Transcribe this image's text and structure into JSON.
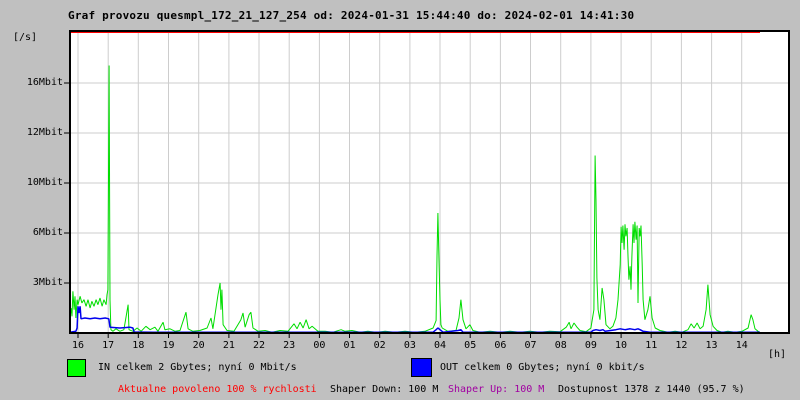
{
  "title": "Graf provozu quesmpl_172_21_127_254 od: 2024-01-31 15:44:40 do: 2024-02-01 14:41:30",
  "colors": {
    "background": "#c0c0c0",
    "plot_background": "#ffffff",
    "grid": "#cdcdcd",
    "border": "#000000",
    "in_line": "#00dd00",
    "in_legend": "#00ff00",
    "out_line": "#0000ee",
    "out_legend": "#0000ff",
    "limit_line": "#ff0000",
    "warn_text": "#ff0000",
    "shaper_up_text": "#a000a0",
    "text": "#000000"
  },
  "chart_data": {
    "type": "line",
    "title": "Graf provozu quesmpl_172_21_127_254 od: 2024-01-31 15:44:40 do: 2024-02-01 14:41:30",
    "y_unit": "[/s]",
    "x_unit": "[h]",
    "x_ticks": [
      "16",
      "17",
      "18",
      "19",
      "20",
      "21",
      "22",
      "23",
      "00",
      "01",
      "02",
      "03",
      "04",
      "05",
      "06",
      "07",
      "08",
      "09",
      "10",
      "11",
      "12",
      "13",
      "14"
    ],
    "y_ticks": [
      {
        "label": "3Mbit",
        "value": 3
      },
      {
        "label": "6Mbit",
        "value": 6
      },
      {
        "label": "10Mbit",
        "value": 10
      },
      {
        "label": "12Mbit",
        "value": 12
      },
      {
        "label": "16Mbit",
        "value": 16
      }
    ],
    "x_range_hours": [
      15.73,
      38.6
    ],
    "grid": true,
    "limit_line_at_top": true,
    "series": [
      {
        "name": "IN",
        "unit": "Mbit/s",
        "points": [
          [
            15.73,
            0.8
          ],
          [
            15.77,
            1.5
          ],
          [
            15.8,
            1.0
          ],
          [
            15.83,
            2.5
          ],
          [
            15.87,
            1.4
          ],
          [
            15.9,
            2.2
          ],
          [
            15.93,
            0.9
          ],
          [
            15.97,
            2.0
          ],
          [
            16.0,
            1.7
          ],
          [
            16.07,
            2.2
          ],
          [
            16.13,
            1.8
          ],
          [
            16.2,
            2.0
          ],
          [
            16.27,
            1.6
          ],
          [
            16.33,
            2.0
          ],
          [
            16.4,
            1.5
          ],
          [
            16.46,
            1.9
          ],
          [
            16.53,
            1.6
          ],
          [
            16.6,
            2.0
          ],
          [
            16.66,
            1.7
          ],
          [
            16.73,
            2.1
          ],
          [
            16.8,
            1.6
          ],
          [
            16.86,
            2.0
          ],
          [
            16.93,
            1.7
          ],
          [
            16.96,
            2.3
          ],
          [
            16.99,
            2.6
          ],
          [
            17.03,
            17.4
          ],
          [
            17.06,
            2.0
          ],
          [
            17.09,
            0.2
          ],
          [
            17.16,
            0.1
          ],
          [
            17.26,
            0.25
          ],
          [
            17.39,
            0.1
          ],
          [
            17.52,
            0.2
          ],
          [
            17.66,
            1.7
          ],
          [
            17.69,
            0.2
          ],
          [
            17.82,
            0.1
          ],
          [
            17.96,
            0.3
          ],
          [
            18.09,
            0.1
          ],
          [
            18.25,
            0.4
          ],
          [
            18.39,
            0.2
          ],
          [
            18.55,
            0.35
          ],
          [
            18.65,
            0.1
          ],
          [
            18.82,
            0.65
          ],
          [
            18.88,
            0.2
          ],
          [
            19.05,
            0.25
          ],
          [
            19.22,
            0.1
          ],
          [
            19.38,
            0.15
          ],
          [
            19.58,
            1.25
          ],
          [
            19.65,
            0.25
          ],
          [
            19.81,
            0.1
          ],
          [
            20.04,
            0.15
          ],
          [
            20.28,
            0.3
          ],
          [
            20.41,
            0.9
          ],
          [
            20.47,
            0.25
          ],
          [
            20.64,
            2.3
          ],
          [
            20.71,
            3.0
          ],
          [
            20.74,
            1.4
          ],
          [
            20.77,
            2.6
          ],
          [
            20.81,
            0.5
          ],
          [
            20.94,
            0.15
          ],
          [
            21.17,
            0.1
          ],
          [
            21.4,
            0.8
          ],
          [
            21.47,
            1.2
          ],
          [
            21.54,
            0.35
          ],
          [
            21.67,
            1.1
          ],
          [
            21.73,
            1.25
          ],
          [
            21.8,
            0.3
          ],
          [
            21.97,
            0.1
          ],
          [
            22.2,
            0.15
          ],
          [
            22.43,
            0.05
          ],
          [
            22.7,
            0.15
          ],
          [
            22.96,
            0.1
          ],
          [
            23.16,
            0.55
          ],
          [
            23.26,
            0.25
          ],
          [
            23.36,
            0.65
          ],
          [
            23.46,
            0.3
          ],
          [
            23.56,
            0.8
          ],
          [
            23.66,
            0.25
          ],
          [
            23.76,
            0.4
          ],
          [
            23.95,
            0.1
          ],
          [
            24.19,
            0.1
          ],
          [
            24.45,
            0.05
          ],
          [
            24.72,
            0.2
          ],
          [
            24.85,
            0.1
          ],
          [
            25.08,
            0.15
          ],
          [
            25.35,
            0.05
          ],
          [
            25.61,
            0.1
          ],
          [
            25.88,
            0.05
          ],
          [
            26.18,
            0.1
          ],
          [
            26.51,
            0.05
          ],
          [
            26.84,
            0.1
          ],
          [
            27.17,
            0.05
          ],
          [
            27.5,
            0.1
          ],
          [
            27.77,
            0.3
          ],
          [
            27.87,
            0.75
          ],
          [
            27.9,
            4.6
          ],
          [
            27.93,
            7.6
          ],
          [
            27.97,
            4.1
          ],
          [
            28.0,
            2.0
          ],
          [
            28.03,
            0.5
          ],
          [
            28.07,
            0.3
          ],
          [
            28.26,
            0.1
          ],
          [
            28.53,
            0.15
          ],
          [
            28.63,
            0.9
          ],
          [
            28.69,
            2.0
          ],
          [
            28.76,
            0.8
          ],
          [
            28.86,
            0.25
          ],
          [
            28.99,
            0.5
          ],
          [
            29.09,
            0.15
          ],
          [
            29.32,
            0.05
          ],
          [
            29.66,
            0.1
          ],
          [
            29.99,
            0.05
          ],
          [
            30.32,
            0.1
          ],
          [
            30.65,
            0.05
          ],
          [
            30.98,
            0.1
          ],
          [
            31.31,
            0.05
          ],
          [
            31.64,
            0.1
          ],
          [
            31.98,
            0.08
          ],
          [
            32.18,
            0.35
          ],
          [
            32.28,
            0.65
          ],
          [
            32.34,
            0.25
          ],
          [
            32.44,
            0.6
          ],
          [
            32.54,
            0.35
          ],
          [
            32.64,
            0.15
          ],
          [
            32.84,
            0.08
          ],
          [
            33.0,
            0.3
          ],
          [
            33.1,
            1.4
          ],
          [
            33.14,
            11.1
          ],
          [
            33.17,
            8.6
          ],
          [
            33.2,
            3.3
          ],
          [
            33.24,
            1.4
          ],
          [
            33.3,
            0.8
          ],
          [
            33.37,
            2.7
          ],
          [
            33.43,
            2.0
          ],
          [
            33.5,
            0.5
          ],
          [
            33.63,
            0.25
          ],
          [
            33.73,
            0.4
          ],
          [
            33.83,
            0.9
          ],
          [
            33.9,
            2.0
          ],
          [
            33.97,
            4.1
          ],
          [
            34.0,
            6.5
          ],
          [
            34.03,
            5.4
          ],
          [
            34.06,
            6.6
          ],
          [
            34.1,
            5.0
          ],
          [
            34.13,
            6.7
          ],
          [
            34.16,
            5.8
          ],
          [
            34.2,
            6.4
          ],
          [
            34.23,
            4.6
          ],
          [
            34.26,
            3.2
          ],
          [
            34.3,
            4.0
          ],
          [
            34.33,
            2.6
          ],
          [
            34.36,
            4.6
          ],
          [
            34.4,
            6.7
          ],
          [
            34.43,
            5.4
          ],
          [
            34.46,
            6.9
          ],
          [
            34.5,
            5.6
          ],
          [
            34.53,
            6.6
          ],
          [
            34.56,
            1.8
          ],
          [
            34.6,
            6.4
          ],
          [
            34.63,
            5.8
          ],
          [
            34.66,
            6.6
          ],
          [
            34.7,
            4.1
          ],
          [
            34.73,
            2.0
          ],
          [
            34.79,
            0.8
          ],
          [
            34.89,
            1.4
          ],
          [
            34.96,
            2.2
          ],
          [
            35.03,
            0.9
          ],
          [
            35.13,
            0.3
          ],
          [
            35.29,
            0.15
          ],
          [
            35.56,
            0.05
          ],
          [
            35.79,
            0.1
          ],
          [
            36.02,
            0.05
          ],
          [
            36.22,
            0.2
          ],
          [
            36.32,
            0.55
          ],
          [
            36.42,
            0.3
          ],
          [
            36.52,
            0.6
          ],
          [
            36.62,
            0.25
          ],
          [
            36.72,
            0.4
          ],
          [
            36.82,
            1.4
          ],
          [
            36.88,
            2.9
          ],
          [
            36.95,
            1.1
          ],
          [
            37.05,
            0.4
          ],
          [
            37.18,
            0.15
          ],
          [
            37.35,
            0.05
          ],
          [
            37.54,
            0.1
          ],
          [
            37.78,
            0.05
          ],
          [
            38.01,
            0.1
          ],
          [
            38.21,
            0.3
          ],
          [
            38.31,
            1.1
          ],
          [
            38.37,
            0.8
          ],
          [
            38.44,
            0.25
          ],
          [
            38.54,
            0.1
          ],
          [
            38.6,
            0.05
          ]
        ]
      },
      {
        "name": "OUT",
        "unit": "Mbit/s",
        "points": [
          [
            15.73,
            0.05
          ],
          [
            15.93,
            0.1
          ],
          [
            15.97,
            0.3
          ],
          [
            16.0,
            1.6
          ],
          [
            16.03,
            1.2
          ],
          [
            16.07,
            1.6
          ],
          [
            16.1,
            0.85
          ],
          [
            16.23,
            0.9
          ],
          [
            16.4,
            0.85
          ],
          [
            16.56,
            0.9
          ],
          [
            16.73,
            0.85
          ],
          [
            16.9,
            0.9
          ],
          [
            17.02,
            0.85
          ],
          [
            17.06,
            0.35
          ],
          [
            17.39,
            0.3
          ],
          [
            17.72,
            0.35
          ],
          [
            17.82,
            0.3
          ],
          [
            17.86,
            0.06
          ],
          [
            18.5,
            0.05
          ],
          [
            20.0,
            0.05
          ],
          [
            22.0,
            0.05
          ],
          [
            24.0,
            0.05
          ],
          [
            26.0,
            0.05
          ],
          [
            27.77,
            0.05
          ],
          [
            27.87,
            0.2
          ],
          [
            27.93,
            0.3
          ],
          [
            28.0,
            0.2
          ],
          [
            28.1,
            0.05
          ],
          [
            28.6,
            0.15
          ],
          [
            28.69,
            0.2
          ],
          [
            28.76,
            0.05
          ],
          [
            31.0,
            0.05
          ],
          [
            33.0,
            0.05
          ],
          [
            33.07,
            0.15
          ],
          [
            33.17,
            0.2
          ],
          [
            33.3,
            0.15
          ],
          [
            33.4,
            0.2
          ],
          [
            33.47,
            0.1
          ],
          [
            33.83,
            0.2
          ],
          [
            33.97,
            0.25
          ],
          [
            34.13,
            0.2
          ],
          [
            34.3,
            0.25
          ],
          [
            34.46,
            0.2
          ],
          [
            34.56,
            0.25
          ],
          [
            34.63,
            0.2
          ],
          [
            34.73,
            0.1
          ],
          [
            34.96,
            0.05
          ],
          [
            36.6,
            0.05
          ],
          [
            38.6,
            0.05
          ]
        ]
      }
    ]
  },
  "legend": {
    "in": {
      "color": "#00ff00",
      "label": "IN celkem 2 Gbytes; nyní 0 Mbit/s"
    },
    "out": {
      "color": "#0000ff",
      "label": "OUT celkem 0 Gbytes; nyní 0 kbit/s"
    }
  },
  "status": {
    "allowed": "Aktualne povoleno 100 % rychlosti",
    "shaper_down": "Shaper Down: 100 M",
    "shaper_up": "Shaper Up: 100 M",
    "availability": "Dostupnost 1378 z 1440 (95.7 %)"
  }
}
